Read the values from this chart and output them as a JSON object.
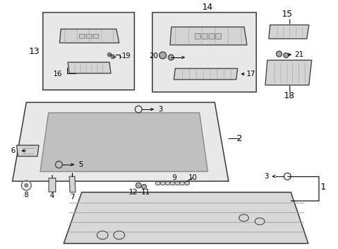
{
  "bg_color": "#ffffff",
  "fig_width": 4.89,
  "fig_height": 3.6,
  "dpi": 100,
  "gray_fill": "#d4d4d4",
  "dark_gray": "#888888",
  "mid_gray": "#aaaaaa",
  "light_gray": "#e8e8e8",
  "box_edge": "#444444",
  "hatched_fill": "#c8c8c8"
}
